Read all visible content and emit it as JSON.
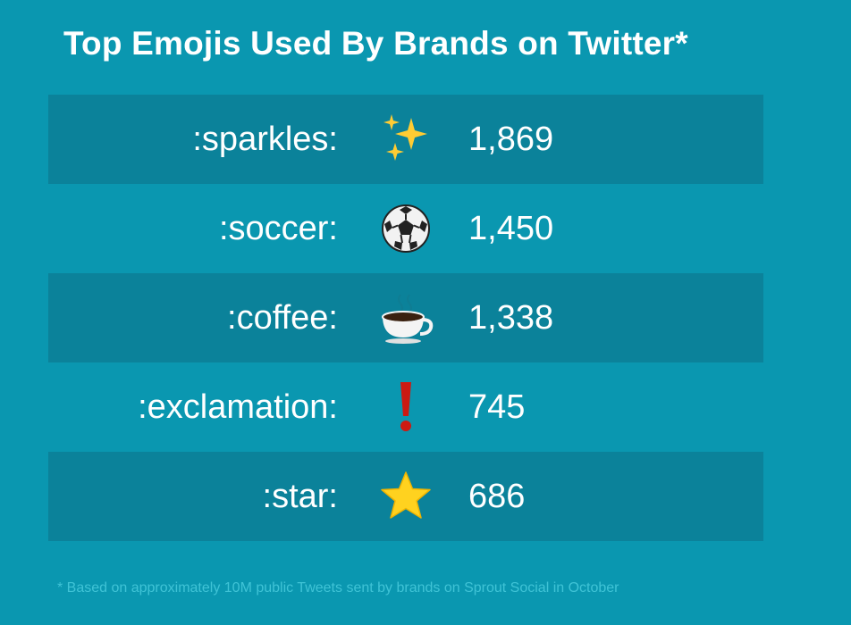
{
  "title": "Top Emojis Used By Brands on Twitter*",
  "footnote": "* Based on approximately 10M public Tweets sent by brands on Sprout Social in October",
  "colors": {
    "background": "#0a97b0",
    "shaded_row": "#0b829a",
    "footnote": "#3fc3d6"
  },
  "chart_data": {
    "type": "table",
    "title": "Top Emojis Used By Brands on Twitter*",
    "columns": [
      "emoji_name",
      "emoji",
      "count"
    ],
    "rows": [
      {
        "name": ":sparkles:",
        "icon": "sparkles-icon",
        "value": 1869,
        "display": "1,869"
      },
      {
        "name": ":soccer:",
        "icon": "soccer-ball-icon",
        "value": 1450,
        "display": "1,450"
      },
      {
        "name": ":coffee:",
        "icon": "coffee-icon",
        "value": 1338,
        "display": "1,338"
      },
      {
        "name": ":exclamation:",
        "icon": "exclamation-icon",
        "value": 745,
        "display": "745"
      },
      {
        "name": ":star:",
        "icon": "star-icon",
        "value": 686,
        "display": "686"
      }
    ]
  }
}
